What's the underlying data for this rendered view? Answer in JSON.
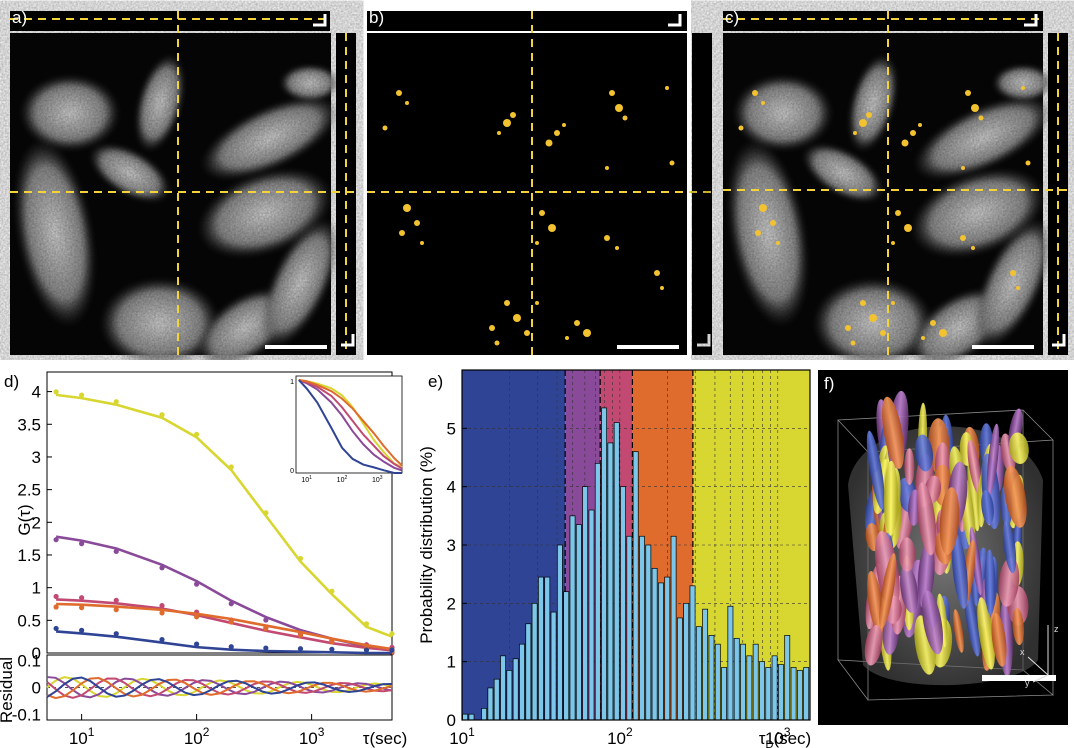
{
  "panels": {
    "a": {
      "label": "a)"
    },
    "b": {
      "label": "b)"
    },
    "c": {
      "label": "c)"
    },
    "d": {
      "label": "d)"
    },
    "e": {
      "label": "e)"
    },
    "f": {
      "label": "f)"
    }
  },
  "colors": {
    "dashed_crosshair": "#f2d33a",
    "gray_cells": "#bdbdbd",
    "yellow_signal": "#f2c230",
    "blue": "#2f4494",
    "purple": "#8a4a9a",
    "pink": "#c24a72",
    "orange": "#df6b2c",
    "yellow": "#d8d631",
    "histogram_bar": "#7cc6e9"
  },
  "panel_d": {
    "ylabel": "G(τ)",
    "residual_label": "Residual",
    "xlabel": "τ(sec)",
    "xticks": [
      "10",
      "10",
      "10"
    ],
    "xtick_exp": [
      "1",
      "2",
      "3"
    ],
    "yticks": [
      "4",
      "3.5",
      "3",
      "2.5",
      "2",
      "1.5",
      "1",
      "0.5",
      "0"
    ],
    "residual_yticks": [
      "0.1",
      "0",
      "-0.1"
    ],
    "inset_yticks": [
      "1",
      "0"
    ],
    "inset_xticks": [
      "10",
      "10",
      "10"
    ],
    "inset_xtick_exp": [
      "1",
      "2",
      "3"
    ]
  },
  "chart_data": [
    {
      "type": "line",
      "title": "",
      "xlabel": "τ(sec)",
      "ylabel": "G(τ)",
      "xscale": "log",
      "xlim": [
        5,
        5000
      ],
      "ylim": [
        0,
        4.3
      ],
      "series": [
        {
          "color": "#d8d631",
          "x": [
            6,
            10,
            20,
            50,
            100,
            200,
            400,
            800,
            1500,
            3000,
            5000
          ],
          "y": [
            3.95,
            3.9,
            3.8,
            3.6,
            3.3,
            2.8,
            2.1,
            1.4,
            0.9,
            0.4,
            0.25
          ]
        },
        {
          "color": "#8a4a9a",
          "x": [
            6,
            10,
            20,
            50,
            100,
            200,
            400,
            800,
            1500,
            3000,
            5000
          ],
          "y": [
            1.78,
            1.72,
            1.6,
            1.35,
            1.1,
            0.8,
            0.55,
            0.35,
            0.22,
            0.1,
            0.05
          ]
        },
        {
          "color": "#c24a72",
          "x": [
            6,
            10,
            20,
            50,
            100,
            200,
            400,
            800,
            1500,
            3000,
            5000
          ],
          "y": [
            0.82,
            0.8,
            0.76,
            0.68,
            0.58,
            0.46,
            0.34,
            0.24,
            0.15,
            0.08,
            0.04
          ]
        },
        {
          "color": "#df6b2c",
          "x": [
            6,
            10,
            20,
            50,
            100,
            200,
            400,
            800,
            1500,
            3000,
            5000
          ],
          "y": [
            0.75,
            0.74,
            0.71,
            0.66,
            0.6,
            0.52,
            0.42,
            0.32,
            0.22,
            0.12,
            0.06
          ]
        },
        {
          "color": "#2f4494",
          "x": [
            6,
            10,
            20,
            50,
            100,
            200,
            400,
            800,
            1500,
            3000,
            5000
          ],
          "y": [
            0.33,
            0.3,
            0.25,
            0.16,
            0.09,
            0.05,
            0.03,
            0.02,
            0.01,
            0.0,
            0.0
          ]
        }
      ]
    },
    {
      "type": "bar",
      "title": "",
      "xlabel": "τD(sec)",
      "ylabel": "Probability distribution (%)",
      "xscale": "log",
      "xlim": [
        10,
        1600
      ],
      "ylim": [
        0,
        6
      ],
      "yticks": [
        "0",
        "1",
        "2",
        "3",
        "4",
        "5"
      ],
      "xticks": [
        "10",
        "10",
        "10"
      ],
      "xtick_exp": [
        "1",
        "2",
        "3"
      ],
      "region_boundaries": [
        45,
        75,
        120,
        290
      ],
      "region_colors": [
        "#2f4494",
        "#8a4a9a",
        "#c24a72",
        "#df6b2c",
        "#d8d631"
      ],
      "bins_log10_start": 1.0,
      "bin_width_log10": 0.04,
      "values": [
        0.1,
        0.1,
        0.0,
        0.2,
        0.55,
        0.7,
        1.1,
        0.85,
        1.05,
        1.3,
        1.65,
        2.0,
        2.45,
        2.45,
        1.85,
        3.0,
        2.2,
        3.5,
        3.35,
        4.0,
        3.6,
        4.4,
        5.35,
        4.75,
        5.1,
        4.0,
        3.15,
        4.6,
        3.15,
        3.0,
        2.6,
        2.35,
        2.45,
        3.15,
        1.75,
        2.0,
        2.3,
        1.6,
        1.9,
        1.45,
        1.3,
        0.9,
        1.95,
        1.4,
        1.3,
        1.1,
        1.3,
        1.0,
        0.9,
        1.1,
        0.95,
        1.45,
        0.9,
        0.85,
        0.9,
        1.25,
        0.75,
        0.7,
        0.45,
        0.65
      ],
      "palette_note": ""
    }
  ],
  "scale_label": "",
  "panel_f_axes": {
    "x": "x",
    "y": "y",
    "z": "z"
  }
}
